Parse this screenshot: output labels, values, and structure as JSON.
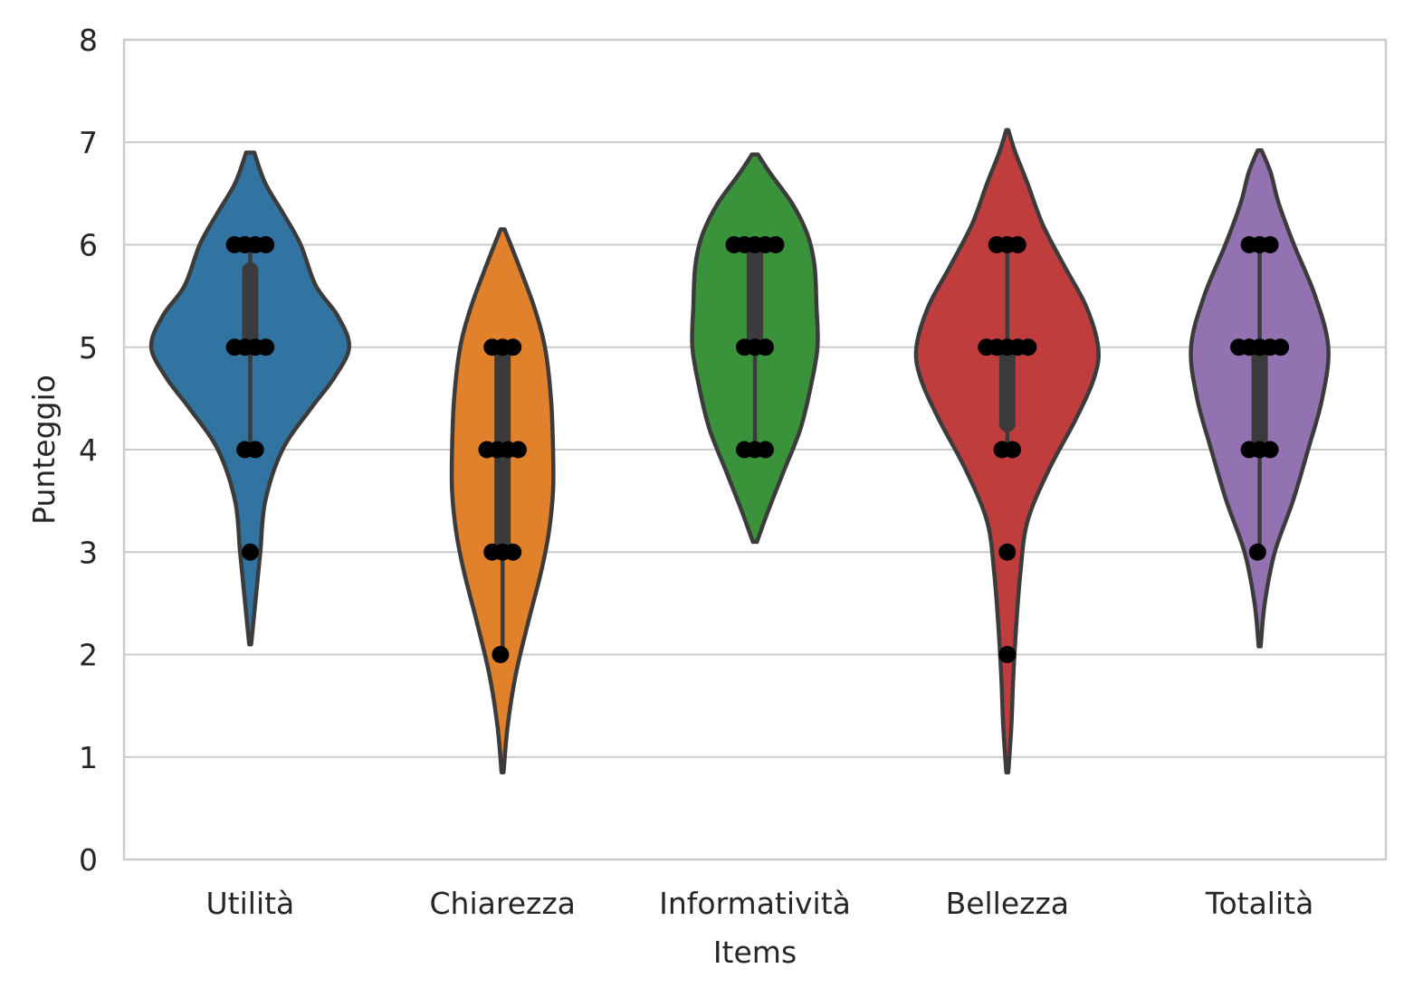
{
  "chart_data": {
    "type": "violin",
    "xlabel": "Items",
    "ylabel": "Punteggio",
    "ylim": [
      0,
      8
    ],
    "yticks": [
      "0",
      "1",
      "2",
      "3",
      "4",
      "5",
      "6",
      "7",
      "8"
    ],
    "grid": "horizontal",
    "categories": [
      "Utilità",
      "Chiarezza",
      "Informatività",
      "Bellezza",
      "Totalità"
    ],
    "colors": [
      "#3274a1",
      "#e1812c",
      "#3a923a",
      "#c03d3e",
      "#9372b2"
    ],
    "series": [
      {
        "category": "Utilità",
        "points": [
          6,
          6,
          6,
          6,
          5,
          5,
          5,
          5,
          4,
          4,
          3
        ],
        "median": 5,
        "q1": 5,
        "q3": 5.75,
        "whisker_low": 4,
        "whisker_high": 6,
        "violin_range": [
          2.1,
          6.9
        ],
        "violin_width": [
          [
            2.1,
            0.01
          ],
          [
            2.5,
            0.05
          ],
          [
            3.0,
            0.1
          ],
          [
            3.5,
            0.15
          ],
          [
            4.0,
            0.32
          ],
          [
            4.4,
            0.6
          ],
          [
            4.7,
            0.83
          ],
          [
            5.0,
            0.98
          ],
          [
            5.3,
            0.87
          ],
          [
            5.6,
            0.65
          ],
          [
            6.0,
            0.5
          ],
          [
            6.3,
            0.33
          ],
          [
            6.6,
            0.15
          ],
          [
            6.9,
            0.04
          ]
        ]
      },
      {
        "category": "Chiarezza",
        "points": [
          5,
          5,
          5,
          4,
          4,
          4,
          4,
          3,
          3,
          3,
          2
        ],
        "median": 4,
        "q1": 3,
        "q3": 5,
        "whisker_low": 2,
        "whisker_high": 5,
        "violin_range": [
          0.85,
          6.15
        ],
        "violin_width": [
          [
            0.85,
            0.01
          ],
          [
            1.3,
            0.05
          ],
          [
            1.8,
            0.13
          ],
          [
            2.3,
            0.25
          ],
          [
            2.8,
            0.38
          ],
          [
            3.2,
            0.46
          ],
          [
            3.6,
            0.5
          ],
          [
            4.0,
            0.5
          ],
          [
            4.5,
            0.48
          ],
          [
            5.0,
            0.42
          ],
          [
            5.4,
            0.31
          ],
          [
            5.8,
            0.16
          ],
          [
            6.15,
            0.02
          ]
        ]
      },
      {
        "category": "Informatività",
        "points": [
          6,
          6,
          6,
          6,
          6,
          5,
          5,
          5,
          4,
          4,
          4
        ],
        "median": 5,
        "q1": 5,
        "q3": 6,
        "whisker_low": 4,
        "whisker_high": 6,
        "violin_range": [
          3.1,
          6.88
        ],
        "violin_width": [
          [
            3.1,
            0.02
          ],
          [
            3.4,
            0.13
          ],
          [
            3.8,
            0.29
          ],
          [
            4.2,
            0.45
          ],
          [
            4.6,
            0.55
          ],
          [
            5.0,
            0.62
          ],
          [
            5.4,
            0.61
          ],
          [
            5.8,
            0.59
          ],
          [
            6.1,
            0.52
          ],
          [
            6.4,
            0.37
          ],
          [
            6.7,
            0.15
          ],
          [
            6.88,
            0.03
          ]
        ]
      },
      {
        "category": "Bellezza",
        "points": [
          6,
          6,
          6,
          5,
          5,
          5,
          5,
          5,
          4,
          4,
          3,
          2
        ],
        "median": 5,
        "q1": 4.25,
        "q3": 5,
        "whisker_low": 4,
        "whisker_high": 6,
        "violin_range": [
          0.85,
          7.12
        ],
        "violin_width": [
          [
            0.85,
            0.01
          ],
          [
            1.3,
            0.04
          ],
          [
            1.8,
            0.06
          ],
          [
            2.3,
            0.09
          ],
          [
            2.8,
            0.13
          ],
          [
            3.3,
            0.2
          ],
          [
            3.8,
            0.41
          ],
          [
            4.3,
            0.68
          ],
          [
            4.7,
            0.86
          ],
          [
            5.0,
            0.9
          ],
          [
            5.4,
            0.78
          ],
          [
            5.8,
            0.56
          ],
          [
            6.2,
            0.35
          ],
          [
            6.6,
            0.2
          ],
          [
            6.9,
            0.08
          ],
          [
            7.12,
            0.01
          ]
        ]
      },
      {
        "category": "Totalità",
        "points": [
          6,
          6,
          6,
          5,
          5,
          5,
          5,
          5,
          4,
          4,
          4,
          3
        ],
        "median": 5,
        "q1": 4,
        "q3": 5,
        "whisker_low": 3,
        "whisker_high": 6,
        "violin_range": [
          2.08,
          6.92
        ],
        "violin_width": [
          [
            2.08,
            0.01
          ],
          [
            2.5,
            0.05
          ],
          [
            3.0,
            0.15
          ],
          [
            3.5,
            0.33
          ],
          [
            4.0,
            0.48
          ],
          [
            4.5,
            0.62
          ],
          [
            5.0,
            0.68
          ],
          [
            5.5,
            0.55
          ],
          [
            6.0,
            0.34
          ],
          [
            6.4,
            0.19
          ],
          [
            6.7,
            0.11
          ],
          [
            6.92,
            0.02
          ]
        ]
      }
    ]
  }
}
